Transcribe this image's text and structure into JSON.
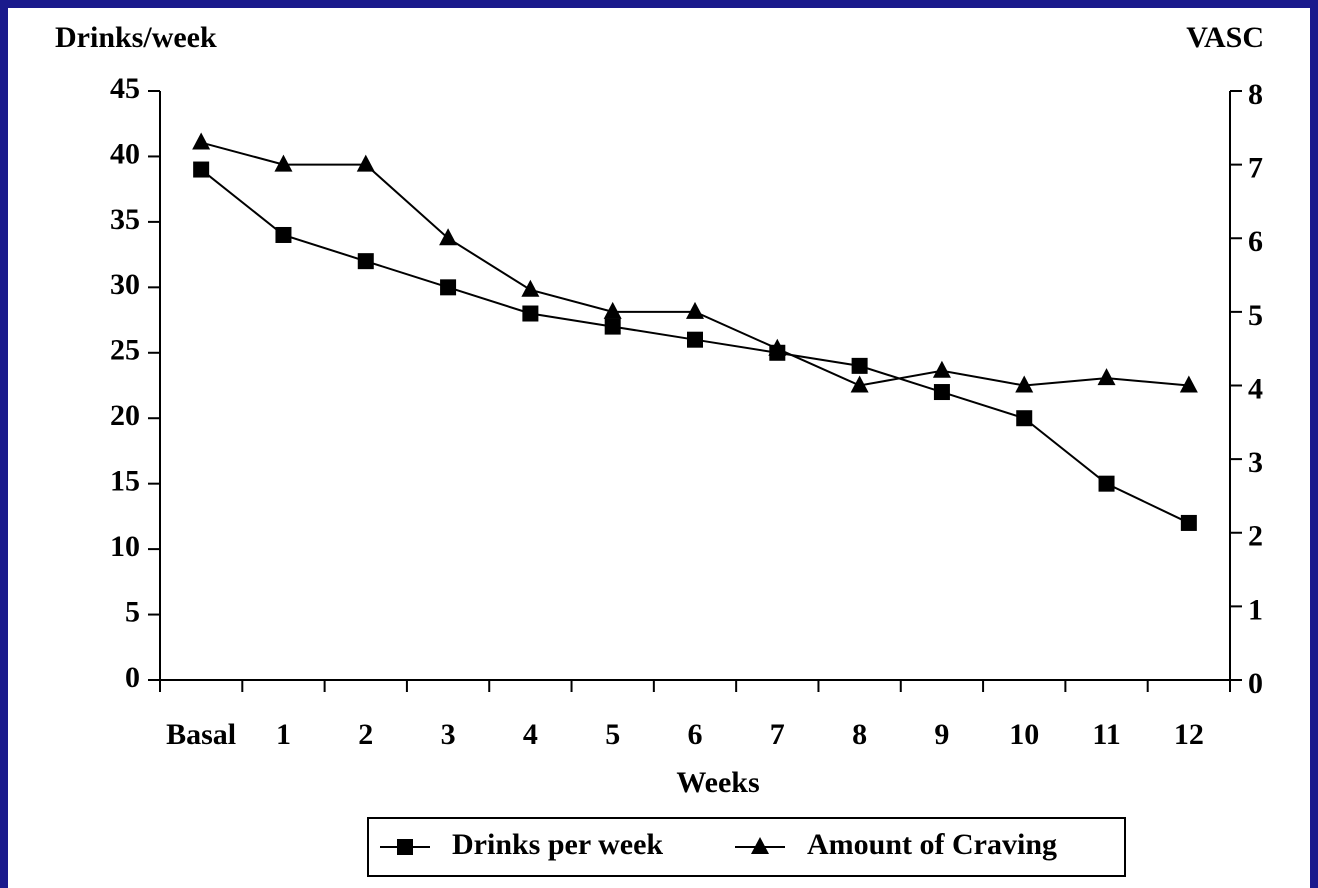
{
  "chart_data": {
    "type": "line",
    "ylabel": "Drinks/week",
    "y2label": "VASC",
    "xlabel": "Weeks",
    "categories": [
      "Basal",
      "1",
      "2",
      "3",
      "4",
      "5",
      "6",
      "7",
      "8",
      "9",
      "10",
      "11",
      "12"
    ],
    "ylim": [
      0,
      45
    ],
    "yticks": [
      0,
      5,
      10,
      15,
      20,
      25,
      30,
      35,
      40,
      45
    ],
    "y2lim": [
      0,
      8
    ],
    "y2ticks": [
      0,
      1,
      2,
      3,
      4,
      5,
      6,
      7,
      8
    ],
    "series": [
      {
        "name": "Drinks per week",
        "color": "#000000",
        "marker": "square",
        "values": [
          39,
          34,
          32,
          30,
          28,
          27,
          26,
          25,
          24,
          22,
          20,
          15,
          12
        ]
      },
      {
        "name": "Amount of Craving",
        "color": "#000000",
        "marker": "triangle",
        "axis": "y2",
        "values": [
          7.3,
          7.0,
          7.0,
          6.0,
          5.3,
          5.0,
          5.0,
          4.5,
          4.0,
          4.2,
          4.0,
          4.1,
          4.0
        ]
      }
    ],
    "legend": "bottom"
  }
}
